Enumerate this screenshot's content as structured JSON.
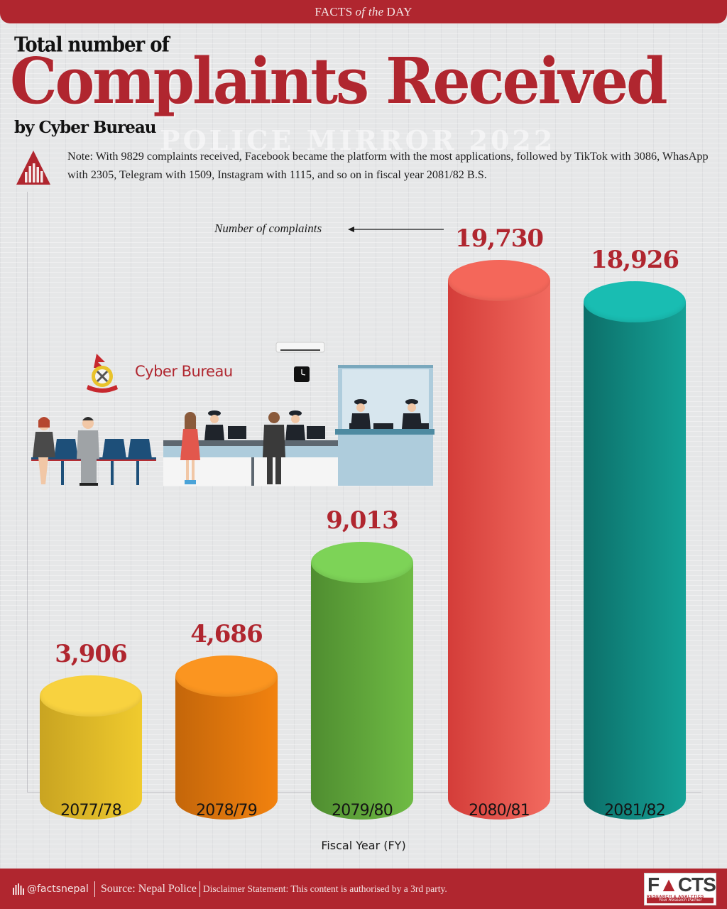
{
  "header": {
    "banner_pre": "FACTS",
    "banner_mid": "of the",
    "banner_post": "DAY",
    "title_pre": "Total number of",
    "title_main": "Complaints Received",
    "title_post": "by Cyber Bureau",
    "watermark": "POLICE MIRROR 2022"
  },
  "note": {
    "icon": "facts-triangle-logo-icon",
    "text": "Note: With 9829 complaints received, Facebook became the platform with the most applications, followed by TikTok with 3086, WhasApp with 2305, Telegram with 1509, Instagram with 1115, and so on in fiscal year 2081/82 B.S."
  },
  "illustration": {
    "label": "Cyber Bureau",
    "icons": [
      "nepal-police-emblem-icon",
      "air-conditioner-icon",
      "wall-clock-icon",
      "waiting-chairs-icon",
      "police-officers-icon",
      "service-counter-icon"
    ]
  },
  "annotation": {
    "text": "Number of complaints"
  },
  "colors": {
    "brand_red": "#b0262f",
    "bars": [
      "#e9c22a",
      "#ec7f12",
      "#67b13f",
      "#ea5550",
      "#14998f"
    ]
  },
  "chart_data": {
    "type": "bar",
    "title": "Total number of Complaints Received by Cyber Bureau",
    "xlabel": "Fiscal Year (FY)",
    "ylabel": "Number of complaints",
    "categories": [
      "2077/78",
      "2078/79",
      "2079/80",
      "2080/81",
      "2081/82"
    ],
    "values": [
      3906,
      4686,
      9013,
      19730,
      18926
    ],
    "value_labels": [
      "3,906",
      "4,686",
      "9,013",
      "19,730",
      "18,926"
    ],
    "grid": false,
    "legend": null,
    "style": "3d-cylinder"
  },
  "footer": {
    "handle": "@factsnepal",
    "source": "Source: Nepal Police",
    "disclaimer": "Disclaimer Statement: This content is authorised by a 3rd party.",
    "logo_word": "FACTS",
    "logo_sub": "RESEARCH & ANALYTICS",
    "logo_tag": "Your Research Partner"
  }
}
